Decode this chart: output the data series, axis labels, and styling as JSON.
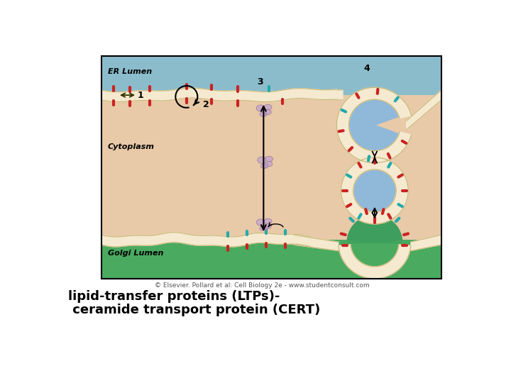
{
  "fig_width": 7.2,
  "fig_height": 5.4,
  "dpi": 100,
  "bg_color": "#ffffff",
  "caption_line1": "lipid-transfer proteins (LTPs)-",
  "caption_line2": " ceramide transport protein (CERT)",
  "caption_fontsize": 13,
  "copyright_text": "© Elsevier. Pollard et al: Cell Biology 2e - www.studentconsult.com",
  "copyright_fontsize": 6.5,
  "er_lumen_color": "#8bbccc",
  "cytoplasm_color": "#e8c9a8",
  "golgi_lumen_color": "#4aaa60",
  "membrane_fill": "#f5ead0",
  "membrane_edge": "#c8b878",
  "vesicle_lumen": "#90b8d8",
  "golgi_dome_fill": "#3d9e5e",
  "protein_color": "#c8a8cc",
  "protein_edge": "#907090",
  "red_stub": "#cc2222",
  "cyan_stub": "#22aaaa",
  "label_er": "ER Lumen",
  "label_cytoplasm": "Cytoplasm",
  "label_golgi": "Golgi Lumen",
  "bx0": 68,
  "by0": 18,
  "bw": 618,
  "bh": 408
}
